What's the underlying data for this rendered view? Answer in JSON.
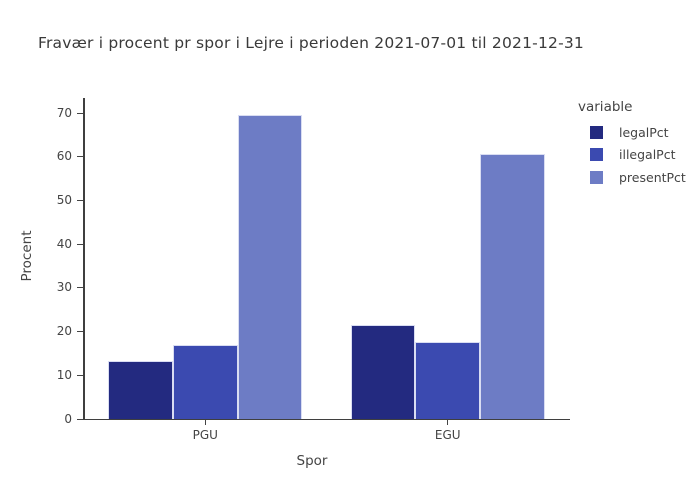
{
  "title": "Fravær i procent pr spor i Lejre i perioden 2021-07-01 til 2021-12-31",
  "chart_data": {
    "type": "bar",
    "title": "Fravær i procent pr spor i Lejre i perioden 2021-07-01 til 2021-12-31",
    "xlabel": "Spor",
    "ylabel": "Procent",
    "categories": [
      "PGU",
      "EGU"
    ],
    "series": [
      {
        "name": "legalPct",
        "color": "#232a80",
        "values": [
          13.3,
          21.5
        ]
      },
      {
        "name": "illegalPct",
        "color": "#3b4ab0",
        "values": [
          17.0,
          17.6
        ]
      },
      {
        "name": "presentPct",
        "color": "#6d7cc5",
        "values": [
          69.5,
          60.7
        ]
      }
    ],
    "ylim": [
      0,
      73.5
    ],
    "yticks": [
      0,
      10,
      20,
      30,
      40,
      50,
      60,
      70
    ],
    "legend_title": "variable",
    "legend_position": "right",
    "grid": false,
    "bar_group_fraction": 0.8
  },
  "colors": {
    "axis": "#3f3f3f",
    "tick_text": "#444444",
    "title_text": "#3a3a3a",
    "bar_border": "#d9ddf2",
    "background": "#ffffff"
  }
}
